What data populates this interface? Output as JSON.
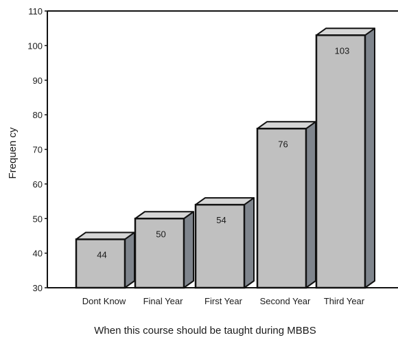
{
  "chart_data": {
    "type": "bar",
    "style": "3d",
    "categories": [
      "Dont Know",
      "Final Year",
      "First Year",
      "Second Year",
      "Third Year"
    ],
    "values": [
      44,
      50,
      54,
      76,
      103
    ],
    "data_labels": [
      "44",
      "50",
      "54",
      "76",
      "103"
    ],
    "xlabel": "When this course should be taught during MBBS",
    "ylabel": "Frequen cy",
    "ylim": [
      30,
      110
    ],
    "yticks": [
      30,
      40,
      50,
      60,
      70,
      80,
      90,
      100,
      110
    ],
    "grid": false,
    "legend": "none",
    "colors": {
      "bar_front": "#c0c0c0",
      "bar_top": "#d6d6d6",
      "bar_side": "#7f858d",
      "outline": "#111111"
    }
  }
}
